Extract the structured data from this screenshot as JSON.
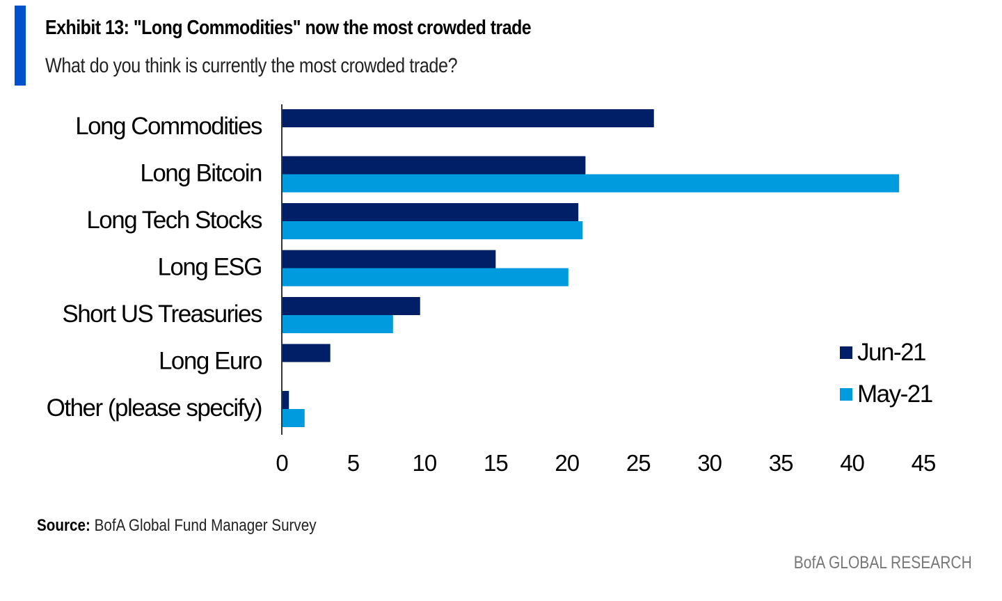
{
  "header": {
    "title": "Exhibit 13: \"Long Commodities\" now the most crowded trade",
    "subtitle": "What do you think is currently the most crowded trade?"
  },
  "footer": {
    "source_label": "Source:",
    "source_text": "BofA Global Fund Manager Survey",
    "brand": "BofA GLOBAL RESEARCH"
  },
  "colors": {
    "accent": "#0052CC",
    "jun": "#001F66",
    "may": "#009ADE"
  },
  "chart_data": {
    "type": "bar",
    "orientation": "horizontal",
    "title": "Exhibit 13: \"Long Commodities\" now the most crowded trade",
    "subtitle": "What do you think is currently the most crowded trade?",
    "xlabel": "",
    "ylabel": "",
    "categories": [
      "Long Commodities",
      "Long Bitcoin",
      "Long Tech Stocks",
      "Long ESG",
      "Short US Treasuries",
      "Long Euro",
      "Other (please specify)"
    ],
    "series": [
      {
        "name": "Jun-21",
        "color": "#001F66",
        "values": [
          26.1,
          21.3,
          20.8,
          15.0,
          9.7,
          3.4,
          0.5
        ]
      },
      {
        "name": "May-21",
        "color": "#009ADE",
        "values": [
          null,
          43.3,
          21.1,
          20.1,
          7.8,
          null,
          1.6
        ]
      }
    ],
    "xlim": [
      0,
      45
    ],
    "xticks": [
      "0",
      "5",
      "10",
      "15",
      "20",
      "25",
      "30",
      "35",
      "40",
      "45"
    ],
    "grid": false,
    "legend_position": "right"
  }
}
